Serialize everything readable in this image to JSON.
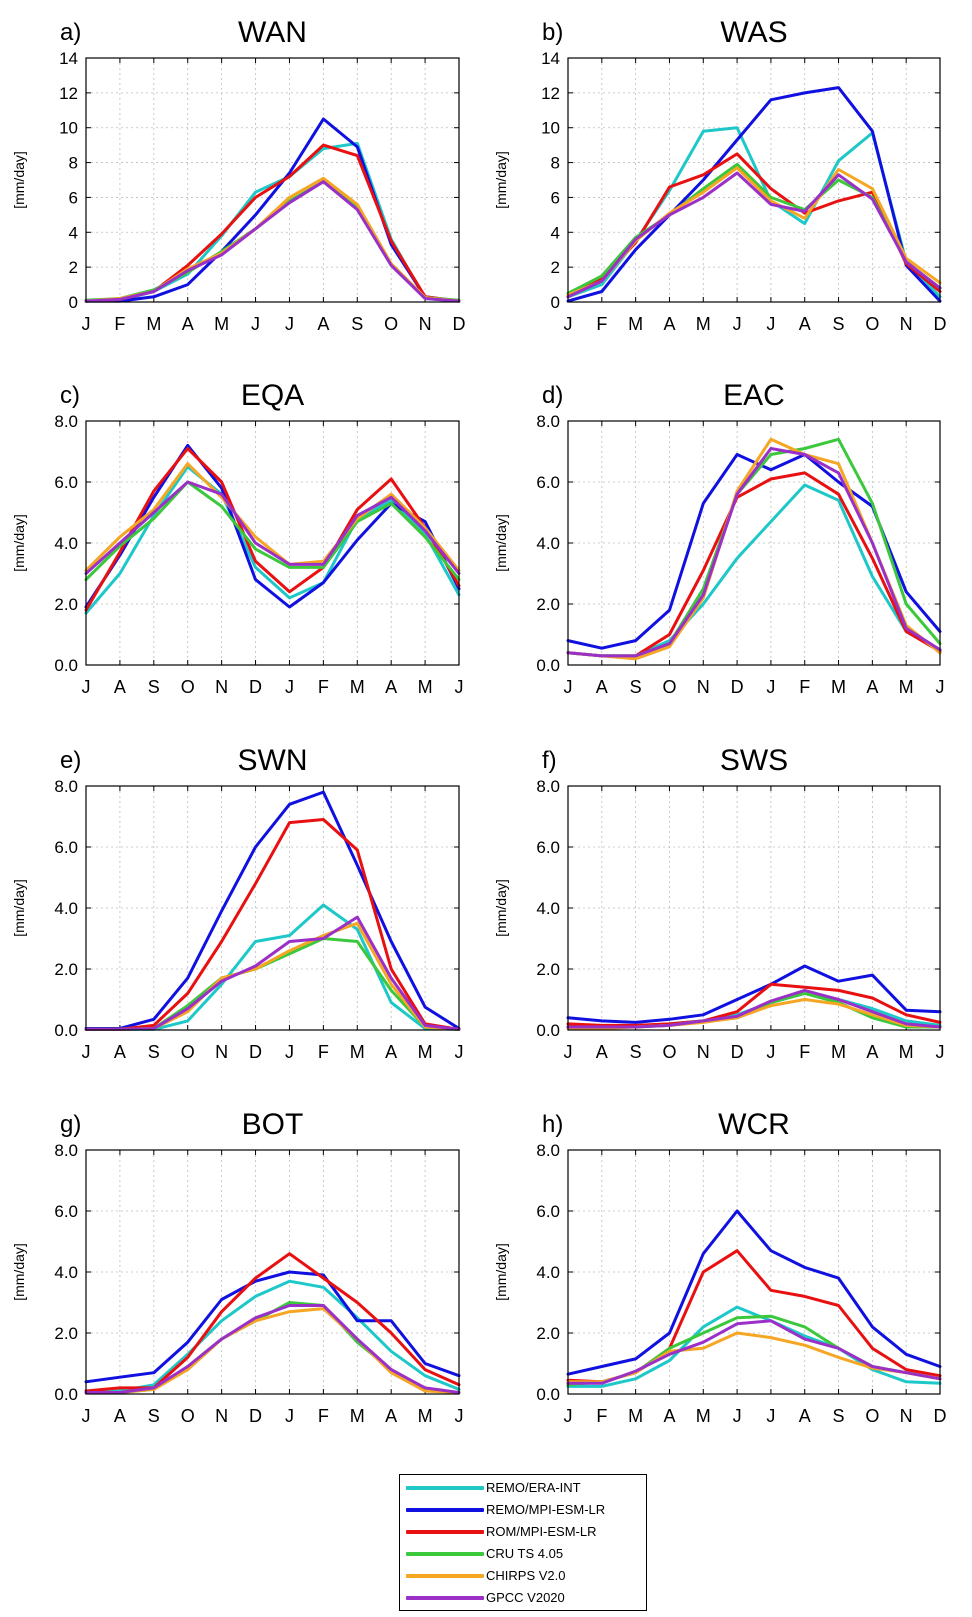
{
  "figure": {
    "ylabel_unit": "[mm/day]",
    "series_colors": {
      "REMO/ERA-INT": "#1ec8c8",
      "REMO/MPI-ESM-LR": "#1010e0",
      "ROM/MPI-ESM-LR": "#e81010",
      "CRU TS 4.05": "#3cc83c",
      "CHIRPS V2.0": "#f5a623",
      "GPCC V2020": "#9b30c8"
    }
  },
  "legend": [
    {
      "name": "REMO/ERA-INT",
      "color": "#1ec8c8"
    },
    {
      "name": "REMO/MPI-ESM-LR",
      "color": "#1010e0"
    },
    {
      "name": "ROM/MPI-ESM-LR",
      "color": "#e81010"
    },
    {
      "name": "CRU TS 4.05",
      "color": "#3cc83c"
    },
    {
      "name": "CHIRPS V2.0",
      "color": "#f5a623"
    },
    {
      "name": "GPCC V2020",
      "color": "#9b30c8"
    }
  ],
  "chart_data": [
    {
      "type": "line",
      "panel": "a)",
      "title": "WAN",
      "ylabel": "[mm/day]",
      "categories": [
        "J",
        "F",
        "M",
        "A",
        "M",
        "J",
        "J",
        "A",
        "S",
        "O",
        "N",
        "D"
      ],
      "ylim": [
        0,
        14
      ],
      "yticks": [
        "0",
        "2",
        "4",
        "6",
        "8",
        "10",
        "12",
        "14"
      ],
      "grid": true,
      "series": [
        {
          "name": "REMO/ERA-INT",
          "values": [
            0.05,
            0.1,
            0.6,
            1.6,
            3.8,
            6.3,
            7.2,
            8.8,
            9.1,
            3.6,
            0.2,
            0.05
          ]
        },
        {
          "name": "REMO/MPI-ESM-LR",
          "values": [
            0.05,
            0.05,
            0.3,
            1.0,
            2.9,
            5.0,
            7.4,
            10.5,
            8.9,
            3.3,
            0.3,
            0.05
          ]
        },
        {
          "name": "ROM/MPI-ESM-LR",
          "values": [
            0.05,
            0.15,
            0.6,
            2.1,
            3.9,
            6.0,
            7.2,
            9.0,
            8.4,
            3.5,
            0.3,
            0.05
          ]
        },
        {
          "name": "CRU TS 4.05",
          "values": [
            0.1,
            0.2,
            0.7,
            1.7,
            2.9,
            4.2,
            5.8,
            6.9,
            5.4,
            2.1,
            0.25,
            0.1
          ]
        },
        {
          "name": "CHIRPS V2.0",
          "values": [
            0.05,
            0.2,
            0.6,
            1.9,
            2.8,
            4.2,
            6.0,
            7.1,
            5.6,
            2.2,
            0.25,
            0.05
          ]
        },
        {
          "name": "GPCC V2020",
          "values": [
            0.05,
            0.15,
            0.6,
            1.8,
            2.7,
            4.2,
            5.7,
            6.9,
            5.3,
            2.1,
            0.2,
            0.05
          ]
        }
      ]
    },
    {
      "type": "line",
      "panel": "b)",
      "title": "WAS",
      "ylabel": "[mm/day]",
      "categories": [
        "J",
        "F",
        "M",
        "A",
        "M",
        "J",
        "J",
        "A",
        "S",
        "O",
        "N",
        "D"
      ],
      "ylim": [
        0,
        14
      ],
      "yticks": [
        "0",
        "2",
        "4",
        "6",
        "8",
        "10",
        "12",
        "14"
      ],
      "grid": true,
      "series": [
        {
          "name": "REMO/ERA-INT",
          "values": [
            0.3,
            1.0,
            3.5,
            6.4,
            9.8,
            10.0,
            5.8,
            4.5,
            8.1,
            9.7,
            2.3,
            0.3
          ]
        },
        {
          "name": "REMO/MPI-ESM-LR",
          "values": [
            0.05,
            0.6,
            3.0,
            5.0,
            7.0,
            9.3,
            11.6,
            12.0,
            12.3,
            9.8,
            2.1,
            0.05
          ]
        },
        {
          "name": "ROM/MPI-ESM-LR",
          "values": [
            0.3,
            1.4,
            3.4,
            6.6,
            7.3,
            8.5,
            6.5,
            5.1,
            5.8,
            6.3,
            2.2,
            0.6
          ]
        },
        {
          "name": "CRU TS 4.05",
          "values": [
            0.5,
            1.5,
            3.7,
            5.0,
            6.5,
            7.9,
            6.0,
            5.3,
            7.0,
            6.0,
            2.3,
            0.8
          ]
        },
        {
          "name": "CHIRPS V2.0",
          "values": [
            0.4,
            1.2,
            3.5,
            5.1,
            6.3,
            7.7,
            5.8,
            4.8,
            7.6,
            6.5,
            2.5,
            1.1
          ]
        },
        {
          "name": "GPCC V2020",
          "values": [
            0.3,
            1.2,
            3.6,
            5.0,
            6.0,
            7.4,
            5.6,
            5.2,
            7.3,
            5.9,
            2.3,
            0.8
          ]
        }
      ]
    },
    {
      "type": "line",
      "panel": "c)",
      "title": "EQA",
      "ylabel": "[mm/day]",
      "categories": [
        "J",
        "A",
        "S",
        "O",
        "N",
        "D",
        "J",
        "F",
        "M",
        "A",
        "M",
        "J"
      ],
      "ylim": [
        0,
        8
      ],
      "yticks": [
        "0.0",
        "2.0",
        "4.0",
        "6.0",
        "8.0"
      ],
      "grid": true,
      "series": [
        {
          "name": "REMO/ERA-INT",
          "values": [
            1.7,
            3.0,
            4.9,
            6.5,
            5.6,
            3.2,
            2.2,
            2.7,
            4.8,
            5.4,
            4.3,
            2.3
          ]
        },
        {
          "name": "REMO/MPI-ESM-LR",
          "values": [
            1.9,
            3.6,
            5.5,
            7.2,
            5.8,
            2.8,
            1.9,
            2.7,
            4.1,
            5.3,
            4.7,
            2.5
          ]
        },
        {
          "name": "ROM/MPI-ESM-LR",
          "values": [
            1.8,
            3.7,
            5.7,
            7.1,
            6.0,
            3.4,
            2.4,
            3.2,
            5.1,
            6.1,
            4.5,
            2.6
          ]
        },
        {
          "name": "CRU TS 4.05",
          "values": [
            2.8,
            3.9,
            4.8,
            6.0,
            5.2,
            3.8,
            3.2,
            3.2,
            4.7,
            5.3,
            4.2,
            2.8
          ]
        },
        {
          "name": "CHIRPS V2.0",
          "values": [
            3.1,
            4.2,
            5.1,
            6.6,
            5.5,
            4.2,
            3.3,
            3.4,
            4.8,
            5.6,
            4.5,
            3.1
          ]
        },
        {
          "name": "GPCC V2020",
          "values": [
            3.0,
            4.0,
            5.0,
            6.0,
            5.6,
            4.0,
            3.3,
            3.3,
            4.9,
            5.5,
            4.4,
            3.0
          ]
        }
      ]
    },
    {
      "type": "line",
      "panel": "d)",
      "title": "EAC",
      "ylabel": "[mm/day]",
      "categories": [
        "J",
        "A",
        "S",
        "O",
        "N",
        "D",
        "J",
        "F",
        "M",
        "A",
        "M",
        "J"
      ],
      "ylim": [
        0,
        8
      ],
      "yticks": [
        "0.0",
        "2.0",
        "4.0",
        "6.0",
        "8.0"
      ],
      "grid": true,
      "series": [
        {
          "name": "REMO/ERA-INT",
          "values": [
            0.4,
            0.3,
            0.3,
            0.8,
            2.0,
            3.5,
            4.7,
            5.9,
            5.4,
            2.9,
            1.1,
            0.5
          ]
        },
        {
          "name": "REMO/MPI-ESM-LR",
          "values": [
            0.8,
            0.55,
            0.8,
            1.8,
            5.3,
            6.9,
            6.4,
            6.9,
            6.0,
            5.2,
            2.4,
            1.1
          ]
        },
        {
          "name": "ROM/MPI-ESM-LR",
          "values": [
            0.4,
            0.3,
            0.3,
            1.0,
            3.1,
            5.5,
            6.1,
            6.3,
            5.6,
            3.5,
            1.1,
            0.45
          ]
        },
        {
          "name": "CRU TS 4.05",
          "values": [
            0.4,
            0.3,
            0.3,
            0.7,
            2.5,
            5.6,
            6.9,
            7.1,
            7.4,
            5.3,
            2.0,
            0.7
          ]
        },
        {
          "name": "CHIRPS V2.0",
          "values": [
            0.4,
            0.3,
            0.2,
            0.6,
            2.2,
            5.7,
            7.4,
            6.9,
            6.6,
            4.0,
            1.3,
            0.4
          ]
        },
        {
          "name": "GPCC V2020",
          "values": [
            0.4,
            0.3,
            0.3,
            0.7,
            2.3,
            5.6,
            7.1,
            6.9,
            6.3,
            4.0,
            1.2,
            0.5
          ]
        }
      ]
    },
    {
      "type": "line",
      "panel": "e)",
      "title": "SWN",
      "ylabel": "[mm/day]",
      "categories": [
        "J",
        "A",
        "S",
        "O",
        "N",
        "D",
        "J",
        "F",
        "M",
        "A",
        "M",
        "J"
      ],
      "ylim": [
        0,
        8
      ],
      "yticks": [
        "0.0",
        "2.0",
        "4.0",
        "6.0",
        "8.0"
      ],
      "grid": true,
      "series": [
        {
          "name": "REMO/ERA-INT",
          "values": [
            0.02,
            0.02,
            0.02,
            0.3,
            1.5,
            2.9,
            3.1,
            4.1,
            3.3,
            0.9,
            0.05,
            0.02
          ]
        },
        {
          "name": "REMO/MPI-ESM-LR",
          "values": [
            0.05,
            0.05,
            0.35,
            1.7,
            3.9,
            6.0,
            7.4,
            7.8,
            5.4,
            2.9,
            0.75,
            0.05
          ]
        },
        {
          "name": "ROM/MPI-ESM-LR",
          "values": [
            0.02,
            0.02,
            0.15,
            1.2,
            2.9,
            4.8,
            6.8,
            6.9,
            5.9,
            2.0,
            0.2,
            0.02
          ]
        },
        {
          "name": "CRU TS 4.05",
          "values": [
            0.02,
            0.02,
            0.05,
            0.8,
            1.7,
            2.0,
            2.5,
            3.0,
            2.9,
            1.3,
            0.1,
            0.02
          ]
        },
        {
          "name": "CHIRPS V2.0",
          "values": [
            0.02,
            0.02,
            0.05,
            0.6,
            1.7,
            2.0,
            2.6,
            3.1,
            3.5,
            1.5,
            0.1,
            0.02
          ]
        },
        {
          "name": "GPCC V2020",
          "values": [
            0.02,
            0.02,
            0.05,
            0.7,
            1.6,
            2.1,
            2.9,
            3.0,
            3.7,
            1.7,
            0.15,
            0.02
          ]
        }
      ]
    },
    {
      "type": "line",
      "panel": "f)",
      "title": "SWS",
      "ylabel": "[mm/day]",
      "categories": [
        "J",
        "A",
        "S",
        "O",
        "N",
        "D",
        "J",
        "F",
        "M",
        "A",
        "M",
        "J"
      ],
      "ylim": [
        0,
        8
      ],
      "yticks": [
        "0.0",
        "2.0",
        "4.0",
        "6.0",
        "8.0"
      ],
      "grid": true,
      "series": [
        {
          "name": "REMO/ERA-INT",
          "values": [
            0.1,
            0.1,
            0.1,
            0.2,
            0.3,
            0.5,
            0.9,
            1.2,
            1.0,
            0.7,
            0.3,
            0.15
          ]
        },
        {
          "name": "REMO/MPI-ESM-LR",
          "values": [
            0.4,
            0.3,
            0.25,
            0.35,
            0.5,
            1.0,
            1.5,
            2.1,
            1.6,
            1.8,
            0.65,
            0.6
          ]
        },
        {
          "name": "ROM/MPI-ESM-LR",
          "values": [
            0.2,
            0.15,
            0.15,
            0.2,
            0.3,
            0.6,
            1.5,
            1.4,
            1.3,
            1.05,
            0.5,
            0.25
          ]
        },
        {
          "name": "CRU TS 4.05",
          "values": [
            0.1,
            0.1,
            0.1,
            0.15,
            0.3,
            0.4,
            0.9,
            1.2,
            0.9,
            0.4,
            0.1,
            0.1
          ]
        },
        {
          "name": "CHIRPS V2.0",
          "values": [
            0.05,
            0.05,
            0.1,
            0.15,
            0.25,
            0.4,
            0.8,
            1.0,
            0.85,
            0.5,
            0.15,
            0.1
          ]
        },
        {
          "name": "GPCC V2020",
          "values": [
            0.1,
            0.1,
            0.1,
            0.15,
            0.3,
            0.45,
            0.95,
            1.3,
            1.0,
            0.6,
            0.2,
            0.1
          ]
        }
      ]
    },
    {
      "type": "line",
      "panel": "g)",
      "title": "BOT",
      "ylabel": "[mm/day]",
      "categories": [
        "J",
        "A",
        "S",
        "O",
        "N",
        "D",
        "J",
        "F",
        "M",
        "A",
        "M",
        "J"
      ],
      "ylim": [
        0,
        8
      ],
      "yticks": [
        "0.0",
        "2.0",
        "4.0",
        "6.0",
        "8.0"
      ],
      "grid": true,
      "series": [
        {
          "name": "REMO/ERA-INT",
          "values": [
            0.05,
            0.1,
            0.3,
            1.3,
            2.4,
            3.2,
            3.7,
            3.5,
            2.5,
            1.4,
            0.6,
            0.15
          ]
        },
        {
          "name": "REMO/MPI-ESM-LR",
          "values": [
            0.4,
            0.55,
            0.7,
            1.7,
            3.1,
            3.7,
            4.0,
            3.9,
            2.4,
            2.4,
            1.0,
            0.6
          ]
        },
        {
          "name": "ROM/MPI-ESM-LR",
          "values": [
            0.1,
            0.2,
            0.2,
            1.2,
            2.7,
            3.8,
            4.6,
            3.8,
            3.0,
            2.0,
            0.8,
            0.3
          ]
        },
        {
          "name": "CRU TS 4.05",
          "values": [
            0.05,
            0.05,
            0.15,
            0.9,
            1.8,
            2.4,
            3.0,
            2.9,
            1.7,
            0.8,
            0.15,
            0.05
          ]
        },
        {
          "name": "CHIRPS V2.0",
          "values": [
            0.05,
            0.05,
            0.15,
            0.8,
            1.8,
            2.4,
            2.7,
            2.8,
            1.8,
            0.7,
            0.1,
            0.05
          ]
        },
        {
          "name": "GPCC V2020",
          "values": [
            0.05,
            0.05,
            0.2,
            0.9,
            1.8,
            2.5,
            2.9,
            2.9,
            1.8,
            0.8,
            0.2,
            0.05
          ]
        }
      ]
    },
    {
      "type": "line",
      "panel": "h)",
      "title": "WCR",
      "ylabel": "[mm/day]",
      "categories": [
        "J",
        "F",
        "M",
        "A",
        "M",
        "J",
        "J",
        "A",
        "S",
        "O",
        "N",
        "D"
      ],
      "ylim": [
        0,
        8
      ],
      "yticks": [
        "0.0",
        "2.0",
        "4.0",
        "6.0",
        "8.0"
      ],
      "grid": true,
      "series": [
        {
          "name": "REMO/ERA-INT",
          "values": [
            0.25,
            0.25,
            0.5,
            1.1,
            2.2,
            2.85,
            2.4,
            1.9,
            1.5,
            0.8,
            0.4,
            0.35
          ]
        },
        {
          "name": "REMO/MPI-ESM-LR",
          "values": [
            0.65,
            0.9,
            1.15,
            2.0,
            4.6,
            6.0,
            4.7,
            4.15,
            3.8,
            2.2,
            1.3,
            0.9
          ]
        },
        {
          "name": "ROM/MPI-ESM-LR",
          "values": [
            0.45,
            0.4,
            0.7,
            1.5,
            4.0,
            4.7,
            3.4,
            3.2,
            2.9,
            1.5,
            0.8,
            0.6
          ]
        },
        {
          "name": "CRU TS 4.05",
          "values": [
            0.3,
            0.4,
            0.7,
            1.5,
            2.0,
            2.5,
            2.55,
            2.2,
            1.5,
            0.9,
            0.7,
            0.5
          ]
        },
        {
          "name": "CHIRPS V2.0",
          "values": [
            0.4,
            0.4,
            0.7,
            1.4,
            1.5,
            2.0,
            1.85,
            1.6,
            1.2,
            0.85,
            0.7,
            0.5
          ]
        },
        {
          "name": "GPCC V2020",
          "values": [
            0.35,
            0.35,
            0.75,
            1.3,
            1.7,
            2.3,
            2.4,
            1.8,
            1.5,
            0.9,
            0.7,
            0.5
          ]
        }
      ]
    }
  ]
}
